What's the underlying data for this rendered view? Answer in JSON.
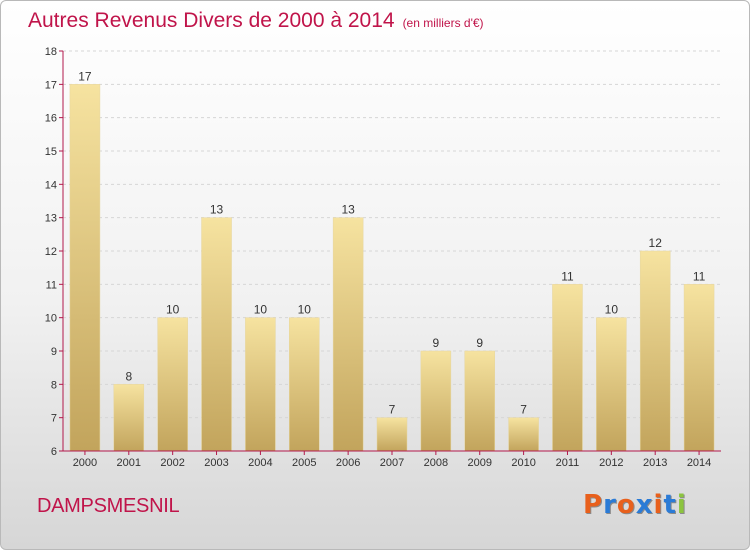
{
  "title": "Autres Revenus Divers de 2000 à 2014",
  "unit_note": "(en milliers d'€)",
  "place": "DAMPSMESNIL",
  "logo": {
    "text": "Proxiti",
    "colors": [
      "#e8601c",
      "#2b7bd6",
      "#e8601c",
      "#2b7bd6",
      "#e8601c",
      "#2b7bd6",
      "#8cc43f"
    ]
  },
  "colors": {
    "title": "#c0144a",
    "bar_top": "#f6e3a0",
    "bar_bottom": "#c2a45c",
    "axis": "#b2184b"
  },
  "chart_data": {
    "type": "bar",
    "categories": [
      "2000",
      "2001",
      "2002",
      "2003",
      "2004",
      "2005",
      "2006",
      "2007",
      "2008",
      "2009",
      "2010",
      "2011",
      "2012",
      "2013",
      "2014"
    ],
    "values": [
      17,
      8,
      10,
      13,
      10,
      10,
      13,
      7,
      9,
      9,
      7,
      11,
      10,
      12,
      11
    ],
    "title": "Autres Revenus Divers de 2000 à 2014",
    "ylim": [
      6,
      18
    ],
    "yticks": [
      6,
      7,
      8,
      9,
      10,
      11,
      12,
      13,
      14,
      15,
      16,
      17,
      18
    ],
    "grid": true,
    "legend": "none"
  }
}
